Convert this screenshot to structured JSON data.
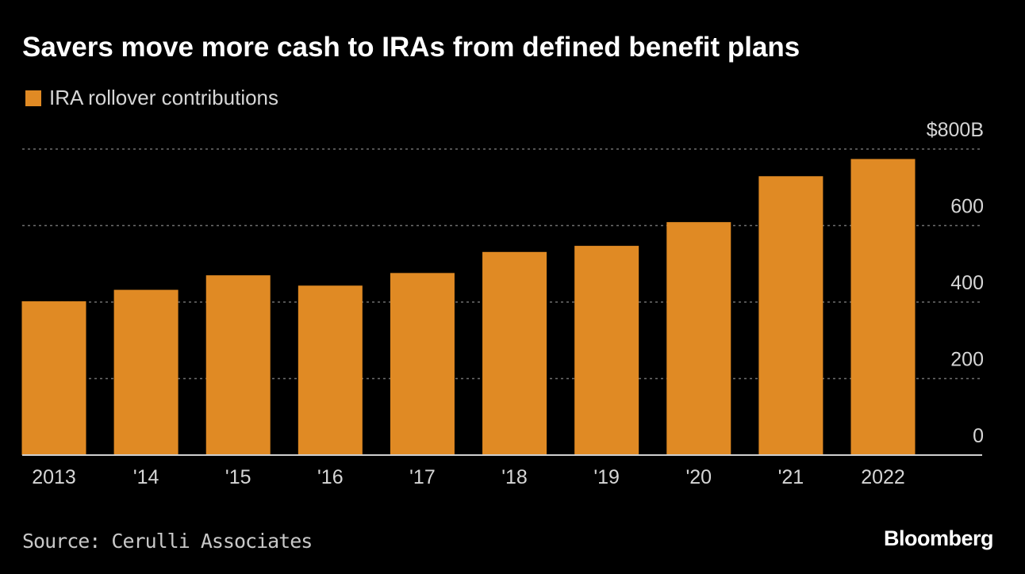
{
  "colors": {
    "background": "#000000",
    "bar": "#e08a24",
    "grid": "#6e6e6e",
    "text": "#d6d6d6"
  },
  "brand": "Bloomberg",
  "source": "Source: Cerulli Associates",
  "chart_data": {
    "type": "bar",
    "title": "Savers move more cash to IRAs from defined benefit plans",
    "series": [
      {
        "name": "IRA rollover contributions",
        "values": [
          402,
          432,
          470,
          443,
          476,
          531,
          547,
          609,
          729,
          774
        ]
      }
    ],
    "categories": [
      "2013",
      "'14",
      "'15",
      "'16",
      "'17",
      "'18",
      "'19",
      "'20",
      "'21",
      "2022"
    ],
    "xlabel": "",
    "ylabel": "",
    "ylim": [
      0,
      800
    ],
    "yticks": [
      0,
      200,
      400,
      600,
      800
    ],
    "ytick_labels": [
      "0",
      "200",
      "400",
      "600",
      "$800B"
    ],
    "grid": true,
    "legend_position": "top-left"
  }
}
